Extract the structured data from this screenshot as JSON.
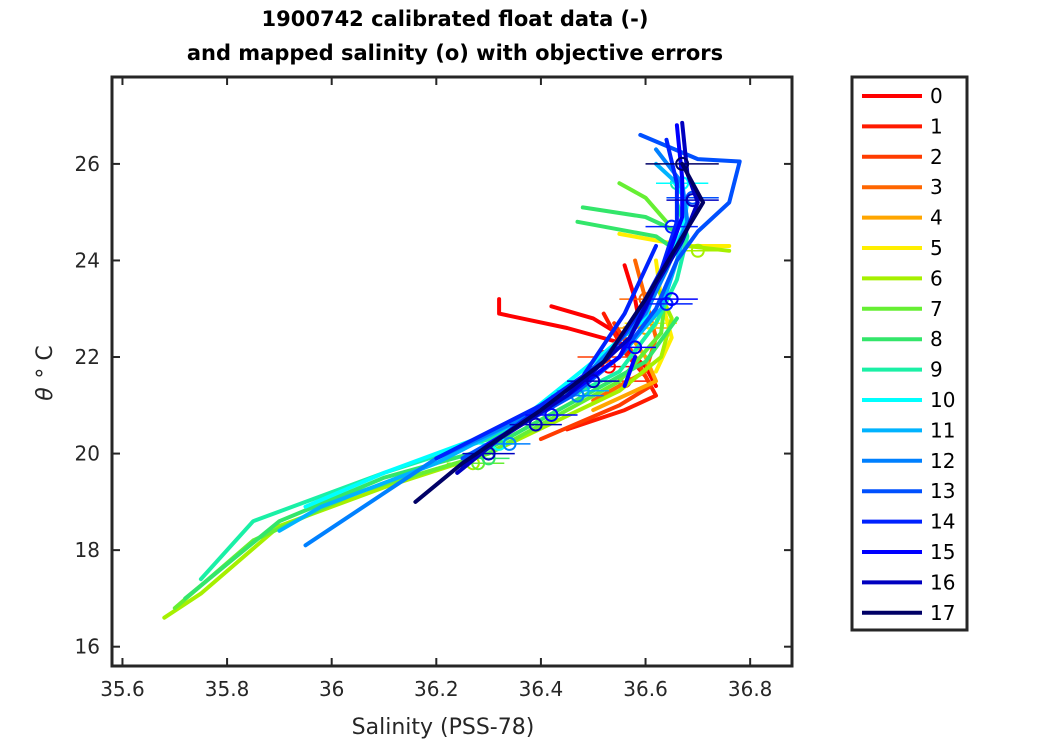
{
  "chart_data": {
    "type": "line",
    "title_line1": "1900742 calibrated float data (-)",
    "title_line2": "and mapped salinity (o) with objective errors",
    "xlabel": "Salinity (PSS-78)",
    "ylabel_symbol": "θ",
    "ylabel_unit": "°  C",
    "xlim": [
      35.58,
      36.88
    ],
    "ylim": [
      15.6,
      27.8
    ],
    "x_ticks": [
      35.6,
      35.8,
      36,
      36.2,
      36.4,
      36.6,
      36.8
    ],
    "x_tick_labels": [
      "35.6",
      "35.8",
      "36",
      "36.2",
      "36.4",
      "36.6",
      "36.8"
    ],
    "y_ticks": [
      16,
      18,
      20,
      22,
      24,
      26
    ],
    "y_tick_labels": [
      "16",
      "18",
      "20",
      "22",
      "24",
      "26"
    ],
    "legend_position": "outside-right",
    "series": [
      {
        "name": "0",
        "color": "#ff0000",
        "profiles": [
          [
            [
              36.32,
              23.2
            ],
            [
              36.32,
              22.9
            ],
            [
              36.45,
              22.6
            ],
            [
              36.55,
              22.3
            ],
            [
              36.6,
              21.8
            ],
            [
              36.62,
              21.4
            ]
          ],
          [
            [
              36.42,
              23.05
            ],
            [
              36.5,
              22.8
            ],
            [
              36.56,
              22.4
            ]
          ],
          [
            [
              36.56,
              23.9
            ],
            [
              36.58,
              23.2
            ],
            [
              36.59,
              22.6
            ]
          ]
        ],
        "mapped": [
          {
            "s": 36.53,
            "t": 21.8,
            "err": 0.04
          }
        ]
      },
      {
        "name": "1",
        "color": "#ff1a00",
        "profiles": [
          [
            [
              36.52,
              22.9
            ],
            [
              36.56,
              22.1
            ],
            [
              36.6,
              21.6
            ],
            [
              36.62,
              21.2
            ],
            [
              36.56,
              20.9
            ],
            [
              36.45,
              20.5
            ]
          ]
        ],
        "mapped": [
          {
            "s": 36.56,
            "t": 21.5,
            "err": 0.05
          }
        ]
      },
      {
        "name": "2",
        "color": "#ff3c00",
        "profiles": [
          [
            [
              36.54,
              22.7
            ],
            [
              36.58,
              22.0
            ],
            [
              36.61,
              21.4
            ],
            [
              36.55,
              21.0
            ],
            [
              36.4,
              20.3
            ]
          ]
        ],
        "mapped": [
          {
            "s": 36.52,
            "t": 22.0,
            "err": 0.05
          }
        ]
      },
      {
        "name": "3",
        "color": "#ff6600",
        "profiles": [
          [
            [
              36.58,
              24.0
            ],
            [
              36.6,
              23.2
            ],
            [
              36.62,
              22.4
            ],
            [
              36.6,
              21.7
            ],
            [
              36.5,
              21.1
            ]
          ]
        ],
        "mapped": [
          {
            "s": 36.6,
            "t": 23.2,
            "err": 0.05
          }
        ]
      },
      {
        "name": "4",
        "color": "#ffa600",
        "profiles": [
          [
            [
              36.56,
              22.6
            ],
            [
              36.6,
              22.0
            ],
            [
              36.62,
              21.5
            ],
            [
              36.5,
              20.9
            ]
          ]
        ],
        "mapped": [
          {
            "s": 36.6,
            "t": 22.6,
            "err": 0.05
          }
        ]
      },
      {
        "name": "5",
        "color": "#ffef00",
        "profiles": [
          [
            [
              36.55,
              24.55
            ],
            [
              36.68,
              24.3
            ],
            [
              36.76,
              24.3
            ]
          ],
          [
            [
              36.62,
              24.0
            ],
            [
              36.63,
              23.2
            ],
            [
              36.65,
              22.4
            ],
            [
              36.62,
              21.7
            ]
          ]
        ],
        "mapped": [
          {
            "s": 36.61,
            "t": 22.7,
            "err": 0.05
          }
        ]
      },
      {
        "name": "6",
        "color": "#a6f000",
        "profiles": [
          [
            [
              36.68,
              24.3
            ],
            [
              36.76,
              24.2
            ]
          ],
          [
            [
              36.62,
              23.5
            ],
            [
              36.65,
              22.8
            ],
            [
              36.63,
              22.0
            ],
            [
              36.55,
              21.3
            ],
            [
              36.3,
              20.0
            ],
            [
              36.1,
              19.3
            ],
            [
              35.9,
              18.5
            ],
            [
              35.75,
              17.1
            ],
            [
              35.68,
              16.6
            ]
          ]
        ],
        "mapped": [
          {
            "s": 36.27,
            "t": 19.8,
            "err": 0.05
          },
          {
            "s": 36.7,
            "t": 24.2,
            "err": 0.04
          }
        ]
      },
      {
        "name": "7",
        "color": "#66ef33",
        "profiles": [
          [
            [
              36.55,
              25.6
            ],
            [
              36.6,
              25.3
            ],
            [
              36.64,
              24.8
            ]
          ],
          [
            [
              36.64,
              23.5
            ],
            [
              36.63,
              22.5
            ],
            [
              36.55,
              21.5
            ],
            [
              36.3,
              20.0
            ],
            [
              36.05,
              19.2
            ],
            [
              35.85,
              18.2
            ],
            [
              35.7,
              16.8
            ]
          ]
        ],
        "mapped": [
          {
            "s": 36.28,
            "t": 19.8,
            "err": 0.05
          }
        ]
      },
      {
        "name": "8",
        "color": "#33e66a",
        "profiles": [
          [
            [
              36.48,
              25.1
            ],
            [
              36.6,
              24.9
            ],
            [
              36.66,
              24.6
            ]
          ],
          [
            [
              36.47,
              24.8
            ],
            [
              36.62,
              24.5
            ],
            [
              36.66,
              24.2
            ]
          ],
          [
            [
              36.66,
              22.8
            ],
            [
              36.6,
              21.9
            ],
            [
              36.5,
              21.3
            ],
            [
              36.3,
              20.1
            ],
            [
              36.1,
              19.5
            ],
            [
              35.9,
              18.6
            ],
            [
              35.72,
              17.0
            ]
          ]
        ],
        "mapped": [
          {
            "s": 36.3,
            "t": 19.9,
            "err": 0.04
          }
        ]
      },
      {
        "name": "9",
        "color": "#1af0a6",
        "profiles": [
          [
            [
              36.66,
              25.2
            ],
            [
              36.68,
              24.5
            ],
            [
              36.66,
              23.6
            ],
            [
              36.62,
              22.7
            ],
            [
              36.55,
              21.7
            ],
            [
              36.3,
              20.3
            ],
            [
              36.1,
              19.6
            ],
            [
              35.85,
              18.6
            ],
            [
              35.75,
              17.4
            ]
          ]
        ],
        "mapped": [
          {
            "s": 36.66,
            "t": 25.6,
            "err": 0.04
          }
        ]
      },
      {
        "name": "10",
        "color": "#00ffff",
        "profiles": [
          [
            [
              36.65,
              25.7
            ],
            [
              36.68,
              25.2
            ],
            [
              36.67,
              24.6
            ],
            [
              36.63,
              23.8
            ],
            [
              36.6,
              22.8
            ],
            [
              36.5,
              21.9
            ],
            [
              36.35,
              20.6
            ],
            [
              36.1,
              19.6
            ],
            [
              35.95,
              18.9
            ]
          ]
        ],
        "mapped": [
          {
            "s": 36.67,
            "t": 25.6,
            "err": 0.05
          },
          {
            "s": 36.32,
            "t": 20.2,
            "err": 0.04
          }
        ]
      },
      {
        "name": "11",
        "color": "#00b3ff",
        "profiles": [
          [
            [
              36.62,
              26.0
            ],
            [
              36.67,
              25.5
            ],
            [
              36.68,
              24.8
            ],
            [
              36.66,
              24.0
            ],
            [
              36.63,
              23.0
            ],
            [
              36.55,
              22.0
            ],
            [
              36.45,
              21.2
            ],
            [
              36.2,
              19.8
            ],
            [
              35.98,
              18.9
            ],
            [
              35.9,
              18.4
            ]
          ]
        ],
        "mapped": [
          {
            "s": 36.48,
            "t": 21.3,
            "err": 0.05
          }
        ]
      },
      {
        "name": "12",
        "color": "#0080ff",
        "profiles": [
          [
            [
              36.62,
              26.3
            ],
            [
              36.67,
              25.6
            ],
            [
              36.68,
              24.8
            ],
            [
              36.64,
              23.8
            ],
            [
              36.6,
              22.9
            ],
            [
              36.52,
              22.0
            ],
            [
              36.44,
              21.1
            ],
            [
              36.2,
              19.9
            ],
            [
              35.95,
              18.1
            ]
          ]
        ],
        "mapped": [
          {
            "s": 36.47,
            "t": 21.2,
            "err": 0.05
          },
          {
            "s": 36.34,
            "t": 20.2,
            "err": 0.04
          }
        ]
      },
      {
        "name": "13",
        "color": "#0050ff",
        "profiles": [
          [
            [
              36.59,
              26.6
            ],
            [
              36.7,
              26.1
            ],
            [
              36.78,
              26.05
            ],
            [
              36.76,
              25.2
            ],
            [
              36.7,
              24.6
            ],
            [
              36.66,
              24.0
            ],
            [
              36.62,
              23.0
            ],
            [
              36.55,
              22.0
            ],
            [
              36.46,
              21.2
            ],
            [
              36.25,
              19.9
            ]
          ]
        ],
        "mapped": [
          {
            "s": 36.69,
            "t": 25.3,
            "err": 0.05
          }
        ]
      },
      {
        "name": "14",
        "color": "#0022ff",
        "profiles": [
          [
            [
              36.64,
              26.5
            ],
            [
              36.66,
              25.6
            ],
            [
              36.66,
              24.8
            ],
            [
              36.63,
              23.8
            ],
            [
              36.58,
              22.8
            ],
            [
              36.52,
              21.9
            ],
            [
              36.4,
              21.0
            ],
            [
              36.2,
              19.9
            ]
          ],
          [
            [
              36.62,
              24.3
            ],
            [
              36.56,
              22.9
            ],
            [
              36.48,
              21.6
            ],
            [
              36.33,
              20.4
            ]
          ]
        ],
        "mapped": [
          {
            "s": 36.65,
            "t": 24.7,
            "err": 0.05
          },
          {
            "s": 36.64,
            "t": 23.1,
            "err": 0.05
          }
        ]
      },
      {
        "name": "15",
        "color": "#0000ff",
        "profiles": [
          [
            [
              36.66,
              26.8
            ],
            [
              36.67,
              25.7
            ],
            [
              36.67,
              24.9
            ],
            [
              36.64,
              24.0
            ],
            [
              36.6,
              23.0
            ],
            [
              36.55,
              22.0
            ],
            [
              36.45,
              21.2
            ],
            [
              36.3,
              20.2
            ],
            [
              36.25,
              19.7
            ]
          ],
          [
            [
              36.58,
              22.0
            ],
            [
              36.56,
              21.4
            ]
          ]
        ],
        "mapped": [
          {
            "s": 36.65,
            "t": 23.2,
            "err": 0.05
          },
          {
            "s": 36.58,
            "t": 22.2,
            "err": 0.04
          },
          {
            "s": 36.42,
            "t": 20.8,
            "err": 0.05
          }
        ]
      },
      {
        "name": "16",
        "color": "#0000c0",
        "profiles": [
          [
            [
              36.67,
              26.85
            ],
            [
              36.68,
              25.8
            ],
            [
              36.7,
              25.2
            ],
            [
              36.67,
              24.4
            ],
            [
              36.62,
              23.5
            ],
            [
              36.57,
              22.4
            ],
            [
              36.45,
              21.2
            ],
            [
              36.32,
              20.3
            ],
            [
              36.24,
              19.6
            ]
          ]
        ],
        "mapped": [
          {
            "s": 36.69,
            "t": 25.25,
            "err": 0.05
          },
          {
            "s": 36.5,
            "t": 21.5,
            "err": 0.05
          },
          {
            "s": 36.39,
            "t": 20.6,
            "err": 0.05
          },
          {
            "s": 36.3,
            "t": 20.0,
            "err": 0.05
          }
        ]
      },
      {
        "name": "17",
        "color": "#000066",
        "profiles": [
          [
            [
              36.67,
              26.0
            ],
            [
              36.71,
              25.2
            ],
            [
              36.66,
              24.3
            ],
            [
              36.6,
              23.2
            ],
            [
              36.52,
              21.9
            ],
            [
              36.4,
              20.9
            ],
            [
              36.25,
              19.8
            ],
            [
              36.16,
              19.0
            ]
          ]
        ],
        "mapped": [
          {
            "s": 36.67,
            "t": 26.0,
            "err": 0.07
          }
        ]
      }
    ]
  }
}
